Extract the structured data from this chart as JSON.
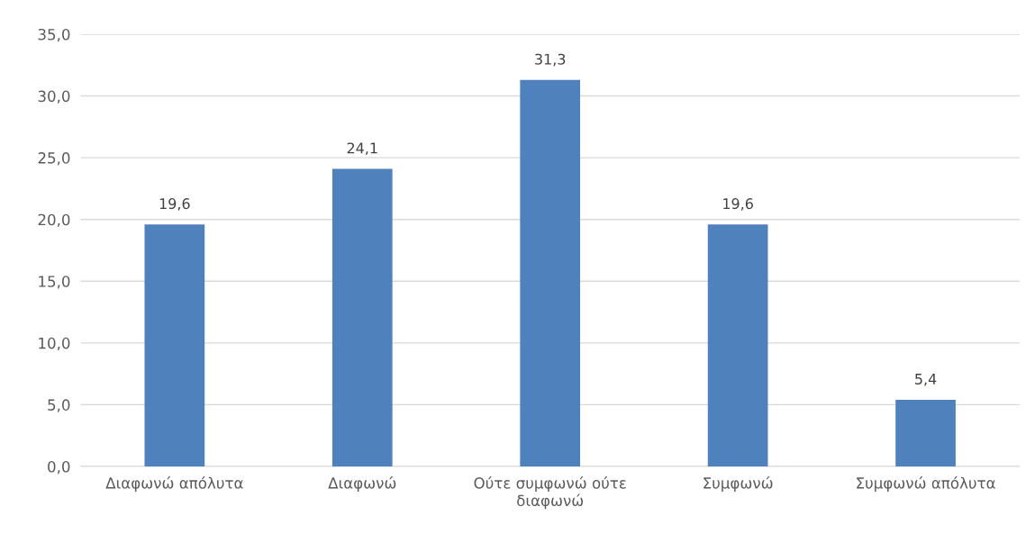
{
  "chart_data": {
    "type": "bar",
    "categories": [
      "Διαφωνώ απόλυτα",
      "Διαφωνώ",
      "Ούτε συμφωνώ ούτε διαφωνώ",
      "Συμφωνώ",
      "Συμφωνώ απόλυτα"
    ],
    "values": [
      19.6,
      24.1,
      31.3,
      19.6,
      5.4
    ],
    "value_labels": [
      "19,6",
      "24,1",
      "31,3",
      "19,6",
      "5,4"
    ],
    "color": "#4f81bd",
    "ylim": [
      0,
      35
    ],
    "yticks": [
      {
        "value": 0,
        "label": "0,0"
      },
      {
        "value": 5,
        "label": "5,0"
      },
      {
        "value": 10,
        "label": "10,0"
      },
      {
        "value": 15,
        "label": "15,0"
      },
      {
        "value": 20,
        "label": "20,0"
      },
      {
        "value": 25,
        "label": "25,0"
      },
      {
        "value": 30,
        "label": "30,0"
      },
      {
        "value": 35,
        "label": "35,0"
      }
    ],
    "grid": "y",
    "legend": false
  }
}
